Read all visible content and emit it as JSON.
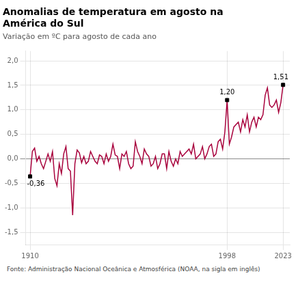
{
  "chart_data": {
    "type": "line",
    "title": [
      "Anomalias de temperatura em agosto na",
      "América do Sul"
    ],
    "subtitle": "Variação em ºC para agosto de cada ano",
    "footer": "Fonte: Administração Nacional Oceânica e Atmosférica (NOAA, na sigla em inglês)",
    "color": "#A8003C",
    "x": [
      1910,
      1911,
      1912,
      1913,
      1914,
      1915,
      1916,
      1917,
      1918,
      1919,
      1920,
      1921,
      1922,
      1923,
      1924,
      1925,
      1926,
      1927,
      1928,
      1929,
      1930,
      1931,
      1932,
      1933,
      1934,
      1935,
      1936,
      1937,
      1938,
      1939,
      1940,
      1941,
      1942,
      1943,
      1944,
      1945,
      1946,
      1947,
      1948,
      1949,
      1950,
      1951,
      1952,
      1953,
      1954,
      1955,
      1956,
      1957,
      1958,
      1959,
      1960,
      1961,
      1962,
      1963,
      1964,
      1965,
      1966,
      1967,
      1968,
      1969,
      1970,
      1971,
      1972,
      1973,
      1974,
      1975,
      1976,
      1977,
      1978,
      1979,
      1980,
      1981,
      1982,
      1983,
      1984,
      1985,
      1986,
      1987,
      1988,
      1989,
      1990,
      1991,
      1992,
      1993,
      1994,
      1995,
      1996,
      1997,
      1998,
      1999,
      2000,
      2001,
      2002,
      2003,
      2004,
      2005,
      2006,
      2007,
      2008,
      2009,
      2010,
      2011,
      2012,
      2013,
      2014,
      2015,
      2016,
      2017,
      2018,
      2019,
      2020,
      2021,
      2022,
      2023
    ],
    "values": [
      -0.36,
      0.15,
      0.22,
      -0.05,
      0.05,
      -0.1,
      -0.2,
      -0.05,
      0.1,
      -0.05,
      0.15,
      -0.4,
      -0.55,
      -0.1,
      -0.3,
      0.1,
      0.25,
      -0.2,
      -0.25,
      -1.15,
      -0.1,
      0.18,
      0.12,
      -0.08,
      0.05,
      -0.1,
      -0.05,
      0.15,
      0.05,
      -0.05,
      -0.1,
      0.08,
      0.05,
      -0.1,
      0.1,
      -0.05,
      0.05,
      0.3,
      0.08,
      0.05,
      -0.2,
      0.1,
      0.05,
      0.15,
      -0.1,
      -0.2,
      -0.15,
      0.35,
      0.15,
      0.05,
      -0.1,
      0.2,
      0.1,
      0.05,
      -0.15,
      -0.1,
      0.05,
      -0.2,
      -0.1,
      0.1,
      0.1,
      -0.2,
      0.15,
      -0.05,
      -0.15,
      0.0,
      -0.1,
      0.15,
      0.05,
      0.1,
      0.15,
      0.2,
      0.1,
      0.3,
      0.0,
      0.05,
      0.1,
      0.25,
      0.0,
      0.1,
      0.25,
      0.3,
      0.05,
      0.1,
      0.35,
      0.4,
      0.2,
      0.55,
      1.2,
      0.3,
      0.45,
      0.65,
      0.7,
      0.75,
      0.55,
      0.8,
      0.65,
      0.9,
      0.55,
      0.75,
      0.85,
      0.65,
      0.85,
      0.8,
      0.9,
      1.3,
      1.45,
      1.1,
      1.05,
      1.1,
      1.2,
      0.95,
      1.15,
      1.51
    ],
    "xlim": [
      1908,
      2026
    ],
    "xticks": [
      1910,
      1998,
      2023
    ],
    "ylim": [
      -1.75,
      2.2
    ],
    "yticks": [
      {
        "value": -1.5,
        "label": "-1,5"
      },
      {
        "value": -1.0,
        "label": "-1,0"
      },
      {
        "value": -0.5,
        "label": "-0,5"
      },
      {
        "value": 0.0,
        "label": "0,0"
      },
      {
        "value": 0.5,
        "label": "0,5"
      },
      {
        "value": 1.0,
        "label": "1,0"
      },
      {
        "value": 1.5,
        "label": "1,5"
      },
      {
        "value": 2.0,
        "label": "2,0"
      }
    ],
    "grid": true,
    "annotations": [
      {
        "x": 1910,
        "y": -0.36,
        "label": "-0,36",
        "color": "#000000",
        "marker": "square"
      },
      {
        "x": 1998,
        "y": 1.2,
        "label": "1,20",
        "color": "#000000",
        "marker": "square"
      },
      {
        "x": 2023,
        "y": 1.51,
        "label": "1,51",
        "color": "#000000",
        "marker": "square"
      }
    ]
  }
}
